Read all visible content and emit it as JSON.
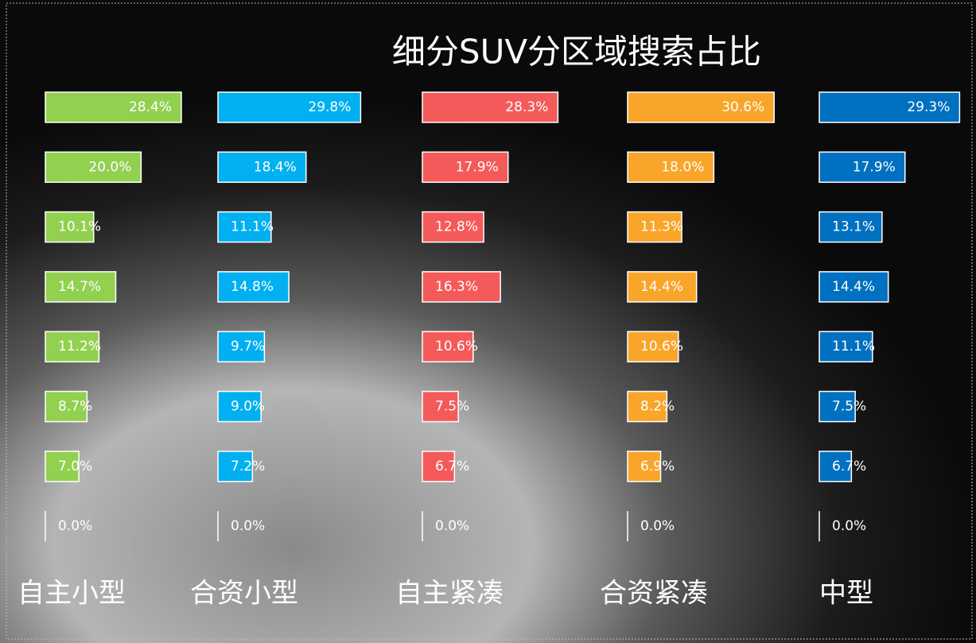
{
  "chart_data": {
    "type": "bar",
    "orientation": "horizontal",
    "title": "细分SUV分区域搜索占比",
    "categories": [
      null,
      null,
      null,
      null,
      null,
      null,
      null,
      null
    ],
    "series": [
      {
        "name": "自主小型",
        "color": "#92d050",
        "values": [
          28.4,
          20.0,
          10.1,
          14.7,
          11.2,
          8.7,
          7.0,
          0.0
        ],
        "value_labels": [
          "28.4%",
          "20.0%",
          "10.1%",
          "14.7%",
          "11.2%",
          "8.7%",
          "7.0%",
          "0.0%"
        ]
      },
      {
        "name": "合资小型",
        "color": "#00b0f0",
        "values": [
          29.8,
          18.4,
          11.1,
          14.8,
          9.7,
          9.0,
          7.2,
          0.0
        ],
        "value_labels": [
          "29.8%",
          "18.4%",
          "11.1%",
          "14.8%",
          "9.7%",
          "9.0%",
          "7.2%",
          "0.0%"
        ]
      },
      {
        "name": "自主紧凑",
        "color": "#f55a5a",
        "values": [
          28.3,
          17.9,
          12.8,
          16.3,
          10.6,
          7.5,
          6.7,
          0.0
        ],
        "value_labels": [
          "28.3%",
          "17.9%",
          "12.8%",
          "16.3%",
          "10.6%",
          "7.5%",
          "6.7%",
          "0.0%"
        ]
      },
      {
        "name": "合资紧凑",
        "color": "#f9a52a",
        "values": [
          30.6,
          18.0,
          11.3,
          14.4,
          10.6,
          8.2,
          6.9,
          0.0
        ],
        "value_labels": [
          "30.6%",
          "18.0%",
          "11.3%",
          "14.4%",
          "10.6%",
          "8.2%",
          "6.9%",
          "0.0%"
        ]
      },
      {
        "name": "中型",
        "color": "#0070c0",
        "values": [
          29.3,
          17.9,
          13.1,
          14.4,
          11.1,
          7.5,
          6.7,
          0.0
        ],
        "value_labels": [
          "29.3%",
          "17.9%",
          "13.1%",
          "14.4%",
          "11.1%",
          "7.5%",
          "6.7%",
          "0.0%"
        ]
      }
    ]
  }
}
